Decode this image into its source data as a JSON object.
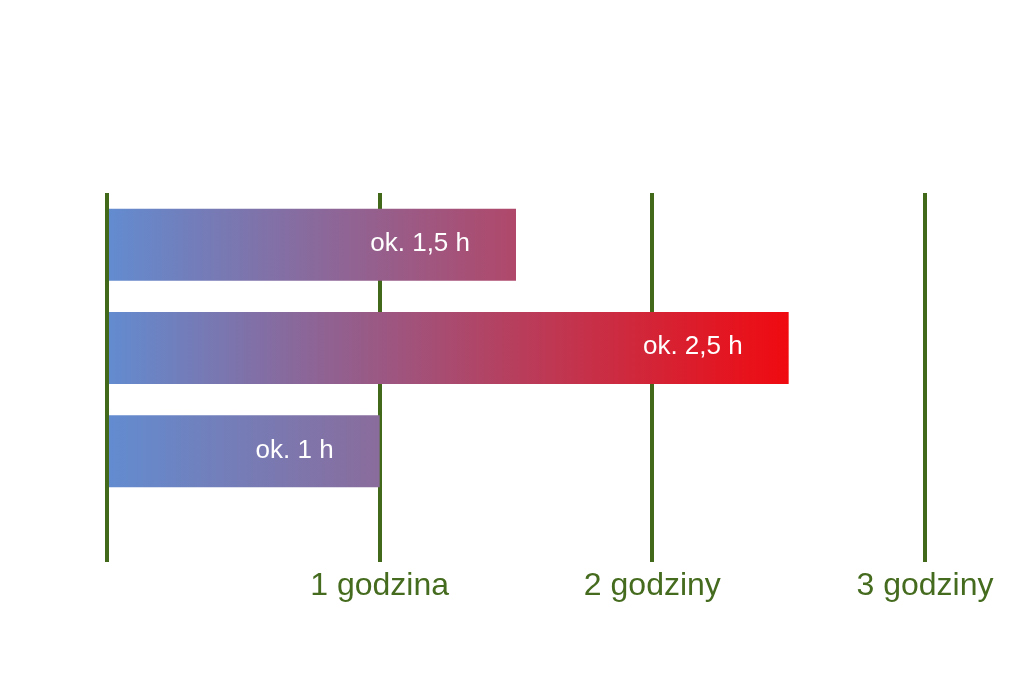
{
  "chart_data": {
    "type": "bar",
    "orientation": "horizontal",
    "categories": [
      null,
      null,
      null
    ],
    "values": [
      1.5,
      2.5,
      1
    ],
    "value_labels": [
      "ok. 1,5 h",
      "ok. 2,5 h",
      "ok. 1 h"
    ],
    "color": "#628cd0",
    "colors": [
      "#b0486a",
      "#f00a10",
      "#8a6c9c"
    ],
    "xlim": [
      0,
      3
    ],
    "xticks": [
      {
        "value": 0,
        "label": null
      },
      {
        "value": 1,
        "label": "1 godzina"
      },
      {
        "value": 2,
        "label": "2 godziny"
      },
      {
        "value": 3,
        "label": "3 godziny"
      }
    ],
    "grid": "x",
    "tick_labels": "x"
  }
}
